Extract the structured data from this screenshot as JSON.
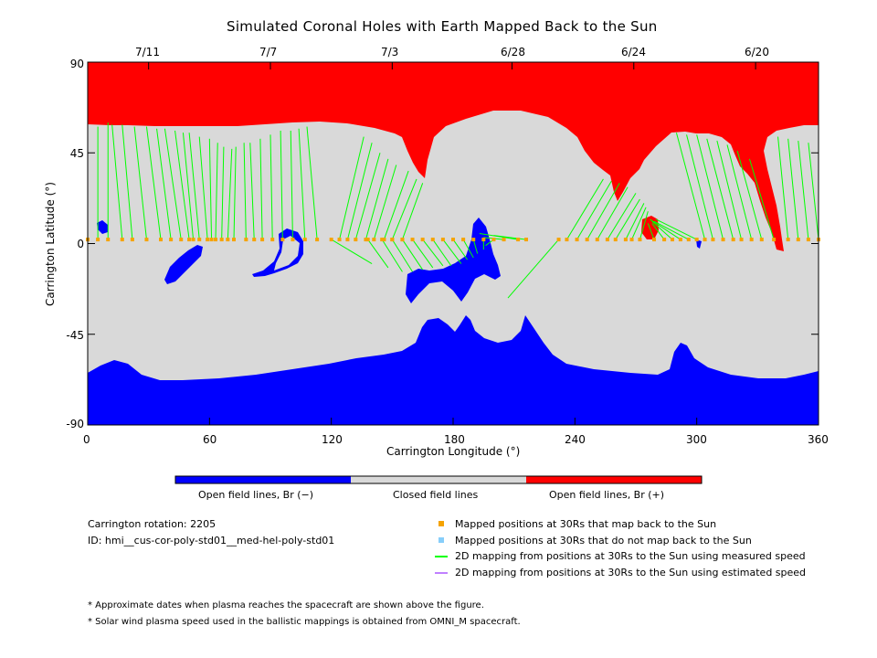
{
  "chart_data": {
    "type": "heatmap",
    "title": "Simulated Coronal Holes with Earth Mapped Back to the Sun",
    "xlabel": "Carrington Longitude (°)",
    "ylabel": "Carrington Latitude (°)",
    "xlim": [
      0,
      360
    ],
    "ylim": [
      -90,
      90
    ],
    "x_ticks": [
      "0",
      "60",
      "120",
      "180",
      "240",
      "300",
      "360"
    ],
    "y_ticks": [
      "90",
      "45",
      "0",
      "-45",
      "-90"
    ],
    "top_axis_dates": [
      {
        "label": "7/11",
        "lon": 30
      },
      {
        "label": "7/7",
        "lon": 90
      },
      {
        "label": "7/3",
        "lon": 150
      },
      {
        "label": "6/28",
        "lon": 209
      },
      {
        "label": "6/24",
        "lon": 269
      },
      {
        "label": "6/20",
        "lon": 329
      }
    ],
    "colorbar": [
      {
        "label": "Open field lines, Br (−)",
        "color": "#0000ff"
      },
      {
        "label": "Closed field lines",
        "color": "#d9d9d9"
      },
      {
        "label": "Open field lines, Br (+)",
        "color": "#ff0000"
      }
    ],
    "mapping_pairs_deg": [
      [
        0,
        2,
        0,
        60
      ],
      [
        5,
        2,
        5,
        58
      ],
      [
        10,
        2,
        10,
        60
      ],
      [
        17,
        2,
        12,
        59
      ],
      [
        22,
        2,
        17,
        59
      ],
      [
        29,
        2,
        23,
        58
      ],
      [
        36,
        2,
        29,
        58
      ],
      [
        41,
        2,
        34,
        57
      ],
      [
        46,
        2,
        38,
        57
      ],
      [
        50,
        2,
        43,
        56
      ],
      [
        52,
        2,
        47,
        55
      ],
      [
        55,
        2,
        50,
        55
      ],
      [
        59,
        2,
        55,
        53
      ],
      [
        61,
        2,
        60,
        52
      ],
      [
        63,
        2,
        64,
        50
      ],
      [
        66,
        2,
        67,
        48
      ],
      [
        69,
        2,
        71,
        47
      ],
      [
        72,
        2,
        73,
        48
      ],
      [
        78,
        2,
        77,
        50
      ],
      [
        82,
        2,
        80,
        50
      ],
      [
        86,
        2,
        85,
        52
      ],
      [
        91,
        2,
        90,
        54
      ],
      [
        96,
        2,
        95,
        56
      ],
      [
        101,
        2,
        100,
        56
      ],
      [
        107,
        2,
        104,
        57
      ],
      [
        113,
        2,
        108,
        58
      ],
      [
        124,
        2,
        136,
        53
      ],
      [
        128,
        2,
        140,
        50
      ],
      [
        132,
        2,
        144,
        45
      ],
      [
        137,
        2,
        148,
        42
      ],
      [
        141,
        2,
        152,
        39
      ],
      [
        146,
        2,
        158,
        36
      ],
      [
        150,
        2,
        162,
        32
      ],
      [
        155,
        2,
        165,
        30
      ],
      [
        120,
        2,
        140,
        -10
      ],
      [
        138,
        2,
        148,
        -12
      ],
      [
        145,
        2,
        155,
        -14
      ],
      [
        150,
        2,
        160,
        -14
      ],
      [
        155,
        2,
        165,
        -13
      ],
      [
        160,
        2,
        170,
        -12
      ],
      [
        165,
        2,
        175,
        -11
      ],
      [
        170,
        2,
        179,
        -11
      ],
      [
        175,
        2,
        184,
        -10
      ],
      [
        180,
        2,
        187,
        -8
      ],
      [
        185,
        2,
        190,
        -7
      ],
      [
        190,
        2,
        192,
        -5
      ],
      [
        195,
        2,
        195,
        -3
      ],
      [
        200,
        2,
        196,
        -1
      ],
      [
        205,
        2,
        195,
        3
      ],
      [
        212,
        2,
        193,
        5
      ],
      [
        216,
        2,
        200,
        4
      ],
      [
        232,
        2,
        207,
        -27
      ],
      [
        236,
        2,
        254,
        32
      ],
      [
        241,
        2,
        258,
        31
      ],
      [
        246,
        2,
        262,
        30
      ],
      [
        251,
        2,
        266,
        28
      ],
      [
        256,
        2,
        270,
        25
      ],
      [
        260,
        2,
        272,
        22
      ],
      [
        265,
        2,
        274,
        20
      ],
      [
        268,
        2,
        275,
        18
      ],
      [
        272,
        2,
        276,
        16
      ],
      [
        279,
        2,
        276,
        10
      ],
      [
        284,
        2,
        278,
        10
      ],
      [
        288,
        2,
        278,
        11
      ],
      [
        292,
        2,
        277,
        12
      ],
      [
        296,
        2,
        279,
        11
      ],
      [
        300,
        2,
        280,
        12
      ],
      [
        304,
        2,
        290,
        55
      ],
      [
        308,
        2,
        295,
        54
      ],
      [
        313,
        2,
        300,
        54
      ],
      [
        318,
        2,
        305,
        52
      ],
      [
        322,
        2,
        310,
        51
      ],
      [
        327,
        2,
        315,
        49
      ],
      [
        332,
        2,
        320,
        46
      ],
      [
        338,
        2,
        326,
        42
      ],
      [
        345,
        2,
        340,
        53
      ],
      [
        350,
        2,
        345,
        52
      ],
      [
        355,
        2,
        350,
        51
      ],
      [
        360,
        2,
        355,
        50
      ]
    ]
  },
  "info": {
    "rotation": "Carrington rotation: 2205",
    "id": "ID: hmi__cus-cor-poly-std01__med-hel-poly-std01"
  },
  "legend": [
    {
      "label": "Mapped positions at 30Rs that map back to the Sun",
      "color": "#f5a300",
      "kind": "square"
    },
    {
      "label": "Mapped positions at 30Rs that do not map back to the Sun",
      "color": "#87cefa",
      "kind": "square"
    },
    {
      "label": "2D mapping from positions at 30Rs to the Sun using measured speed",
      "color": "#00ff00",
      "kind": "line"
    },
    {
      "label": "2D mapping from positions at 30Rs to the Sun using estimated speed",
      "color": "#c080ff",
      "kind": "line"
    }
  ],
  "notes": [
    "* Approximate dates when plasma reaches the spacecraft are shown above the figure.",
    "* Solar wind plasma speed used in the ballistic mappings is obtained from OMNI_M spacecraft."
  ]
}
